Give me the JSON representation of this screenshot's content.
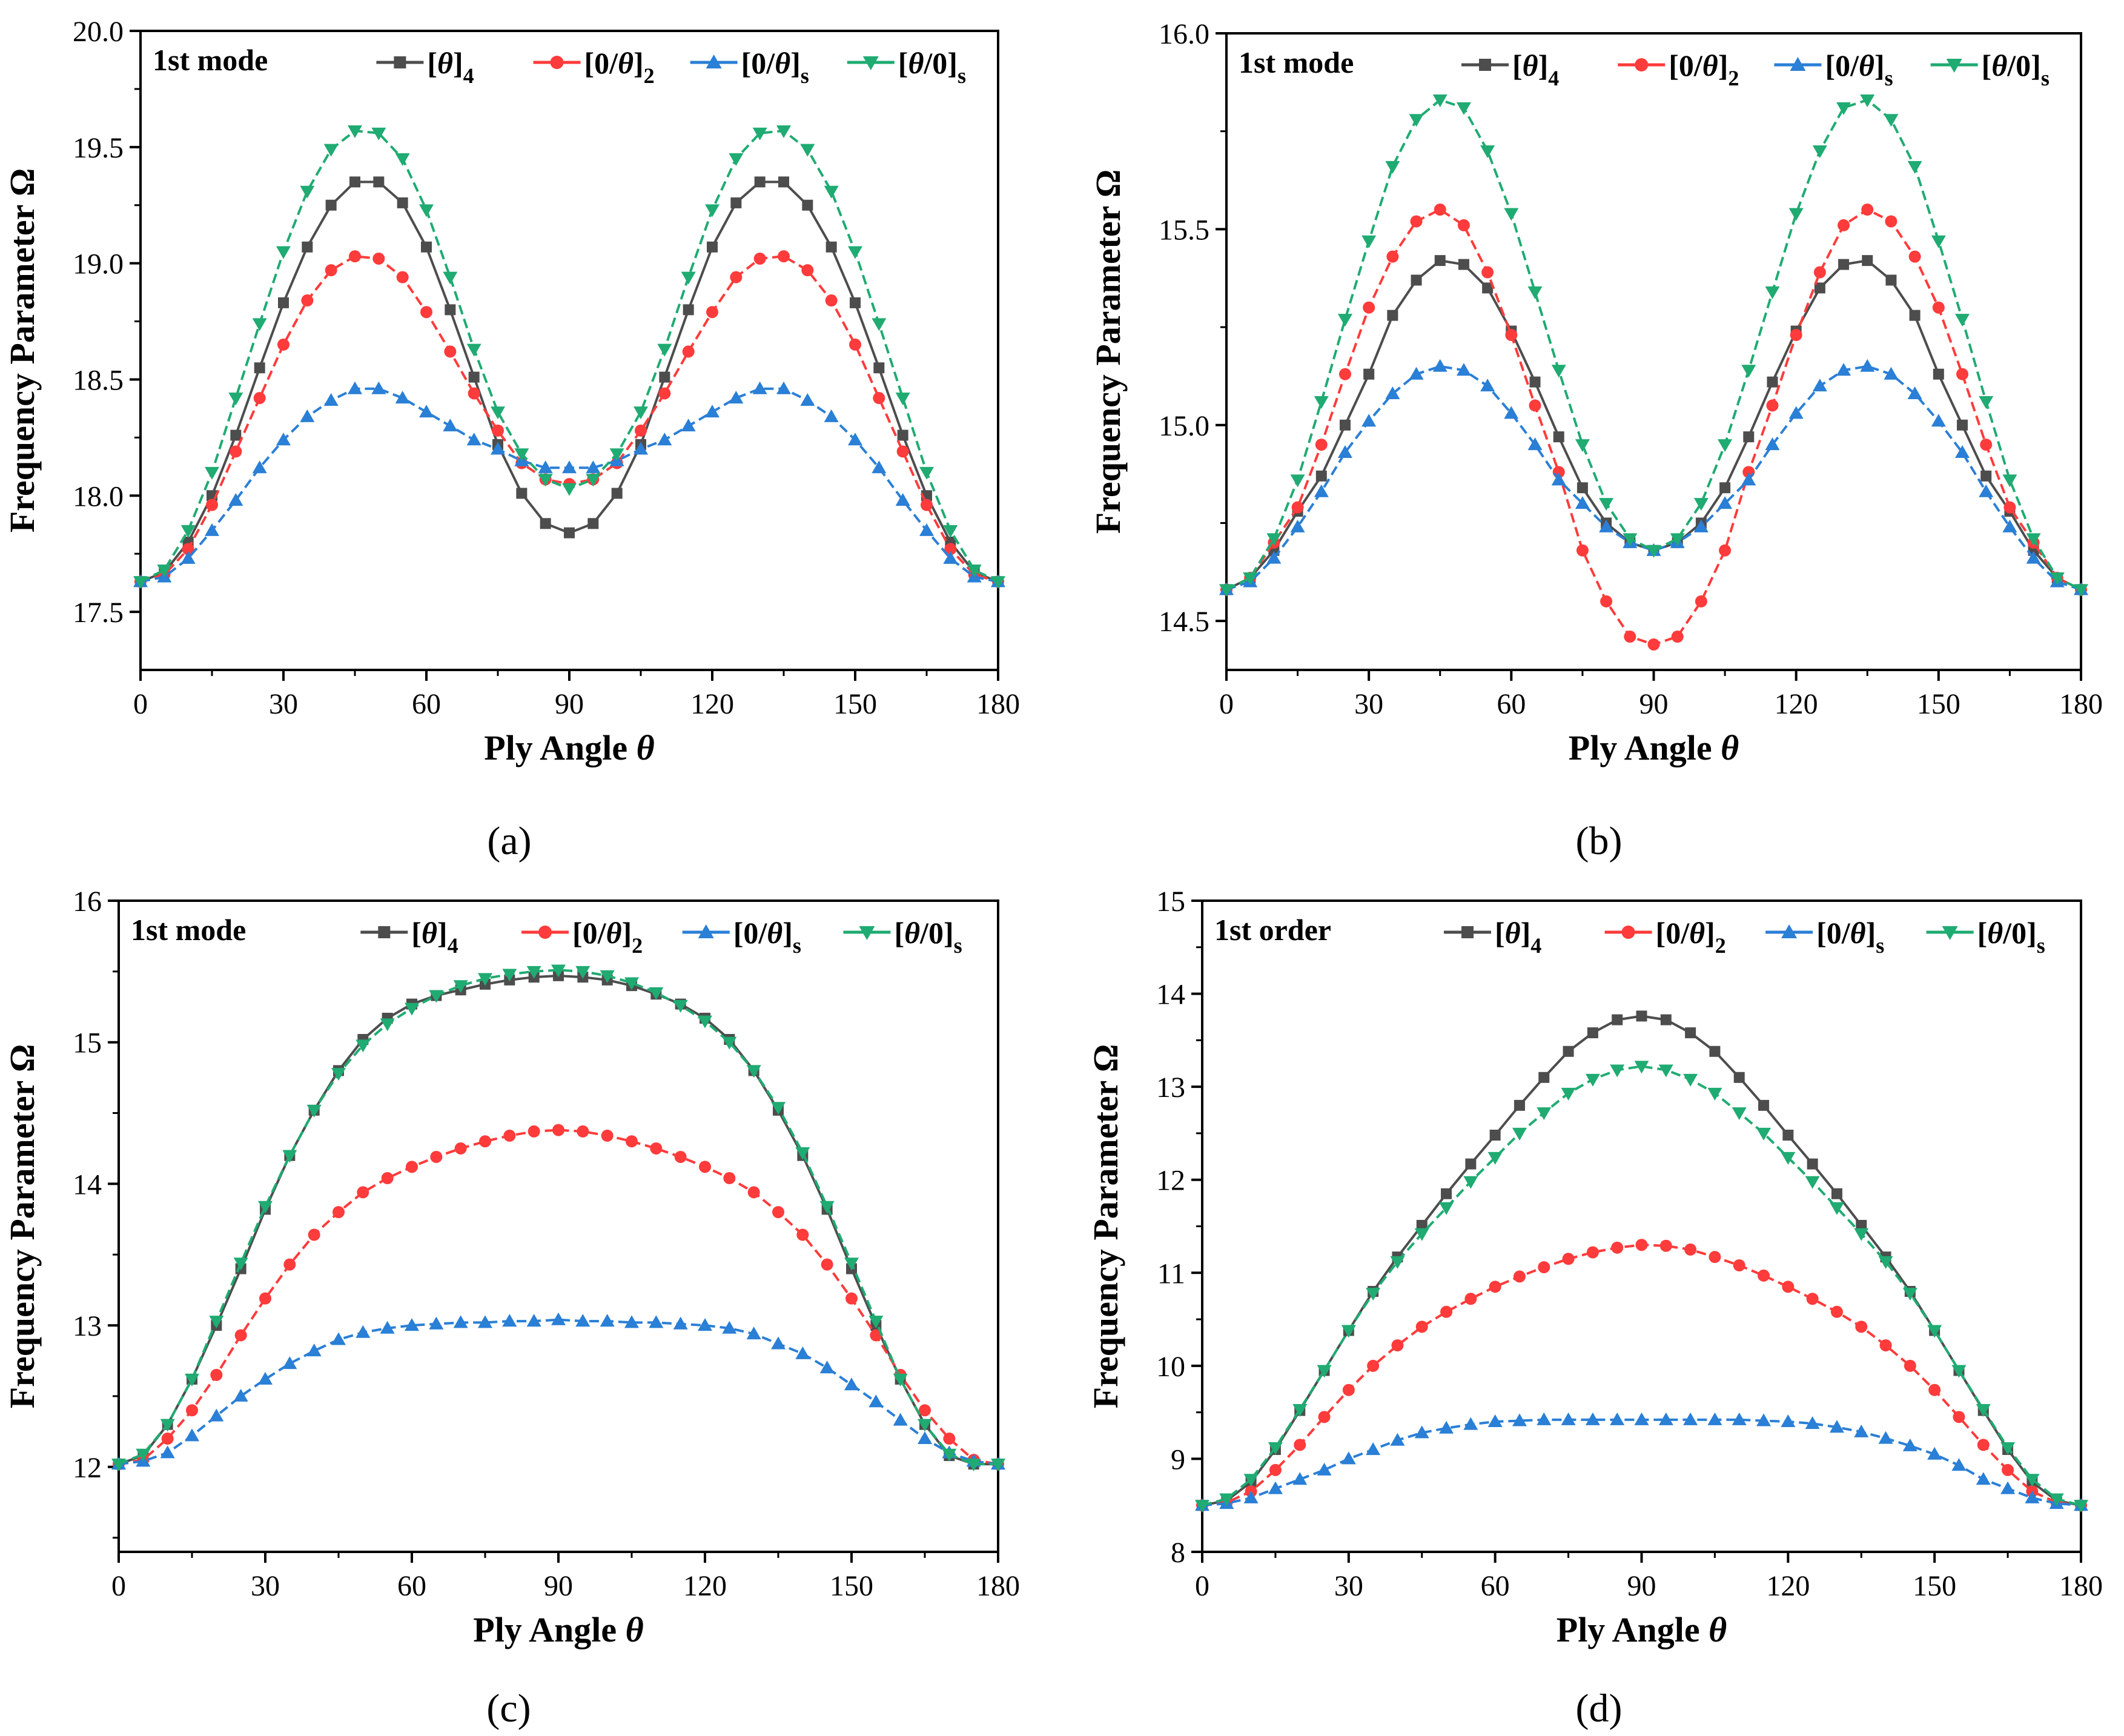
{
  "chart_data": [
    {
      "type": "line",
      "panel": "a",
      "caption": "(a)",
      "annotation": "1st mode",
      "xlabel": "Ply Angle",
      "xlabel_symbol": "θ",
      "ylabel": "Frequency Parameter Ω",
      "xlim": [
        0,
        180
      ],
      "ylim": [
        17.25,
        20.0
      ],
      "xticks": [
        "0",
        "30",
        "60",
        "90",
        "120",
        "150",
        "180"
      ],
      "yticks": [
        "17.5",
        "18.0",
        "18.5",
        "19.0",
        "19.5",
        "20.0"
      ],
      "legend_position": "top",
      "x": [
        0,
        5,
        10,
        15,
        20,
        25,
        30,
        35,
        40,
        45,
        50,
        55,
        60,
        65,
        70,
        75,
        80,
        85,
        90,
        95,
        100,
        105,
        110,
        115,
        120,
        125,
        130,
        135,
        140,
        145,
        150,
        155,
        160,
        165,
        170,
        175,
        180
      ],
      "series": [
        {
          "name": "[θ]4",
          "color": "#4d4d4d",
          "marker": "square",
          "dash": "solid",
          "values": [
            17.63,
            17.67,
            17.8,
            18.0,
            18.26,
            18.55,
            18.83,
            19.07,
            19.25,
            19.35,
            19.35,
            19.26,
            19.07,
            18.8,
            18.51,
            18.22,
            18.01,
            17.88,
            17.84,
            17.88,
            18.01,
            18.22,
            18.51,
            18.8,
            19.07,
            19.26,
            19.35,
            19.35,
            19.25,
            19.07,
            18.83,
            18.55,
            18.26,
            18.0,
            17.8,
            17.67,
            17.63
          ]
        },
        {
          "name": "[0/θ]2",
          "color": "#ff3b3b",
          "marker": "circle",
          "dash": "dash",
          "values": [
            17.63,
            17.66,
            17.77,
            17.96,
            18.19,
            18.42,
            18.65,
            18.84,
            18.97,
            19.03,
            19.02,
            18.94,
            18.79,
            18.62,
            18.44,
            18.28,
            18.14,
            18.07,
            18.05,
            18.07,
            18.14,
            18.28,
            18.44,
            18.62,
            18.79,
            18.94,
            19.02,
            19.03,
            18.97,
            18.84,
            18.65,
            18.42,
            18.19,
            17.96,
            17.77,
            17.66,
            17.63
          ]
        },
        {
          "name": "[0/θ]s",
          "color": "#2a7fd6",
          "marker": "triangle-up",
          "dash": "dash",
          "values": [
            17.63,
            17.65,
            17.73,
            17.85,
            17.98,
            18.12,
            18.24,
            18.34,
            18.41,
            18.46,
            18.46,
            18.42,
            18.36,
            18.3,
            18.24,
            18.2,
            18.15,
            18.12,
            18.12,
            18.12,
            18.15,
            18.2,
            18.24,
            18.3,
            18.36,
            18.42,
            18.46,
            18.46,
            18.41,
            18.34,
            18.24,
            18.12,
            17.98,
            17.85,
            17.73,
            17.65,
            17.63
          ]
        },
        {
          "name": "[θ/0]s",
          "color": "#1fab72",
          "marker": "triangle-down",
          "dash": "dash",
          "values": [
            17.63,
            17.68,
            17.85,
            18.1,
            18.42,
            18.74,
            19.05,
            19.31,
            19.49,
            19.57,
            19.56,
            19.45,
            19.23,
            18.94,
            18.63,
            18.36,
            18.18,
            18.07,
            18.03,
            18.07,
            18.18,
            18.36,
            18.63,
            18.94,
            19.23,
            19.45,
            19.56,
            19.57,
            19.49,
            19.31,
            19.05,
            18.74,
            18.42,
            18.1,
            17.85,
            17.68,
            17.63
          ]
        }
      ]
    },
    {
      "type": "line",
      "panel": "b",
      "caption": "(b)",
      "annotation": "1st mode",
      "xlabel": "Ply Angle",
      "xlabel_symbol": "θ",
      "ylabel": "Frequency Parameter Ω",
      "xlim": [
        0,
        180
      ],
      "ylim": [
        14.375,
        16.0
      ],
      "xticks": [
        "0",
        "30",
        "60",
        "90",
        "120",
        "150",
        "180"
      ],
      "yticks": [
        "14.5",
        "15.0",
        "15.5",
        "16.0"
      ],
      "legend_position": "top",
      "x": [
        0,
        5,
        10,
        15,
        20,
        25,
        30,
        35,
        40,
        45,
        50,
        55,
        60,
        65,
        70,
        75,
        80,
        85,
        90,
        95,
        100,
        105,
        110,
        115,
        120,
        125,
        130,
        135,
        140,
        145,
        150,
        155,
        160,
        165,
        170,
        175,
        180
      ],
      "series": [
        {
          "name": "[θ]4",
          "color": "#4d4d4d",
          "marker": "square",
          "dash": "solid",
          "values": [
            14.58,
            14.61,
            14.68,
            14.78,
            14.87,
            15.0,
            15.13,
            15.28,
            15.37,
            15.42,
            15.41,
            15.35,
            15.24,
            15.11,
            14.97,
            14.84,
            14.75,
            14.7,
            14.68,
            14.7,
            14.75,
            14.84,
            14.97,
            15.11,
            15.24,
            15.35,
            15.41,
            15.42,
            15.37,
            15.28,
            15.13,
            15.0,
            14.87,
            14.78,
            14.68,
            14.61,
            14.58
          ]
        },
        {
          "name": "[0/θ]2",
          "color": "#ff3b3b",
          "marker": "circle",
          "dash": "dash",
          "values": [
            14.58,
            14.61,
            14.7,
            14.79,
            14.95,
            15.13,
            15.3,
            15.43,
            15.52,
            15.55,
            15.51,
            15.39,
            15.23,
            15.05,
            14.88,
            14.68,
            14.55,
            14.46,
            14.44,
            14.46,
            14.55,
            14.68,
            14.88,
            15.05,
            15.23,
            15.39,
            15.51,
            15.55,
            15.52,
            15.43,
            15.3,
            15.13,
            14.95,
            14.79,
            14.7,
            14.61,
            14.58
          ]
        },
        {
          "name": "[0/θ]s",
          "color": "#2a7fd6",
          "marker": "triangle-up",
          "dash": "dash",
          "values": [
            14.58,
            14.6,
            14.66,
            14.74,
            14.83,
            14.93,
            15.01,
            15.08,
            15.13,
            15.15,
            15.14,
            15.1,
            15.03,
            14.95,
            14.86,
            14.8,
            14.74,
            14.7,
            14.68,
            14.7,
            14.74,
            14.8,
            14.86,
            14.95,
            15.03,
            15.1,
            15.14,
            15.15,
            15.13,
            15.08,
            15.01,
            14.93,
            14.83,
            14.74,
            14.66,
            14.6,
            14.58
          ]
        },
        {
          "name": "[θ/0]s",
          "color": "#1fab72",
          "marker": "triangle-down",
          "dash": "dash",
          "values": [
            14.58,
            14.61,
            14.71,
            14.86,
            15.06,
            15.27,
            15.47,
            15.66,
            15.78,
            15.83,
            15.81,
            15.7,
            15.54,
            15.34,
            15.14,
            14.95,
            14.8,
            14.71,
            14.68,
            14.71,
            14.8,
            14.95,
            15.14,
            15.34,
            15.54,
            15.7,
            15.81,
            15.83,
            15.78,
            15.66,
            15.47,
            15.27,
            15.06,
            14.86,
            14.71,
            14.61,
            14.58
          ]
        }
      ]
    },
    {
      "type": "line",
      "panel": "c",
      "caption": "(c)",
      "annotation": "1st mode",
      "xlabel": "Ply Angle",
      "xlabel_symbol": "θ",
      "ylabel": "Frequency Parameter Ω",
      "xlim": [
        0,
        180
      ],
      "ylim": [
        11.4,
        16.0
      ],
      "xticks": [
        "0",
        "30",
        "60",
        "90",
        "120",
        "150",
        "180"
      ],
      "yticks": [
        "12",
        "13",
        "14",
        "15",
        "16"
      ],
      "legend_position": "top",
      "x": [
        0,
        5,
        10,
        15,
        20,
        25,
        30,
        35,
        40,
        45,
        50,
        55,
        60,
        65,
        70,
        75,
        80,
        85,
        90,
        95,
        100,
        105,
        110,
        115,
        120,
        125,
        130,
        135,
        140,
        145,
        150,
        155,
        160,
        165,
        170,
        175,
        180
      ],
      "series": [
        {
          "name": "[θ]4",
          "color": "#4d4d4d",
          "marker": "square",
          "dash": "solid",
          "values": [
            12.02,
            12.08,
            12.3,
            12.62,
            13.0,
            13.4,
            13.82,
            14.2,
            14.52,
            14.8,
            15.02,
            15.17,
            15.27,
            15.33,
            15.37,
            15.41,
            15.44,
            15.46,
            15.47,
            15.46,
            15.44,
            15.4,
            15.34,
            15.27,
            15.17,
            15.02,
            14.8,
            14.52,
            14.2,
            13.82,
            13.4,
            13.0,
            12.62,
            12.3,
            12.08,
            12.02,
            12.02
          ]
        },
        {
          "name": "[0/θ]2",
          "color": "#ff3b3b",
          "marker": "circle",
          "dash": "dash",
          "values": [
            12.02,
            12.05,
            12.2,
            12.4,
            12.65,
            12.93,
            13.19,
            13.43,
            13.64,
            13.8,
            13.94,
            14.04,
            14.12,
            14.19,
            14.25,
            14.3,
            14.34,
            14.37,
            14.38,
            14.37,
            14.34,
            14.3,
            14.25,
            14.19,
            14.12,
            14.04,
            13.94,
            13.8,
            13.64,
            13.43,
            13.19,
            12.93,
            12.65,
            12.4,
            12.2,
            12.05,
            12.02
          ]
        },
        {
          "name": "[0/θ]s",
          "color": "#2a7fd6",
          "marker": "triangle-up",
          "dash": "dash",
          "values": [
            12.02,
            12.04,
            12.1,
            12.22,
            12.36,
            12.5,
            12.62,
            12.73,
            12.82,
            12.9,
            12.95,
            12.98,
            13.0,
            13.01,
            13.02,
            13.02,
            13.03,
            13.03,
            13.04,
            13.03,
            13.03,
            13.02,
            13.02,
            13.01,
            13.0,
            12.98,
            12.94,
            12.87,
            12.8,
            12.7,
            12.58,
            12.46,
            12.33,
            12.2,
            12.1,
            12.04,
            12.02
          ]
        },
        {
          "name": "[θ/0]s",
          "color": "#1fab72",
          "marker": "triangle-down",
          "dash": "dash",
          "values": [
            12.02,
            12.09,
            12.3,
            12.62,
            13.03,
            13.44,
            13.84,
            14.2,
            14.52,
            14.78,
            14.98,
            15.13,
            15.24,
            15.33,
            15.4,
            15.45,
            15.48,
            15.5,
            15.51,
            15.5,
            15.47,
            15.42,
            15.35,
            15.26,
            15.15,
            15.0,
            14.8,
            14.54,
            14.22,
            13.84,
            13.44,
            13.03,
            12.62,
            12.3,
            12.09,
            12.02,
            12.02
          ]
        }
      ]
    },
    {
      "type": "line",
      "panel": "d",
      "caption": "(d)",
      "annotation": "1st order",
      "xlabel": "Ply Angle",
      "xlabel_symbol": "θ",
      "ylabel": "Frequency Parameter Ω",
      "xlim": [
        0,
        180
      ],
      "ylim": [
        8,
        15
      ],
      "xticks": [
        "0",
        "30",
        "60",
        "90",
        "120",
        "150",
        "180"
      ],
      "yticks": [
        "8",
        "9",
        "10",
        "11",
        "12",
        "13",
        "14",
        "15"
      ],
      "legend_position": "top",
      "x": [
        0,
        5,
        10,
        15,
        20,
        25,
        30,
        35,
        40,
        45,
        50,
        55,
        60,
        65,
        70,
        75,
        80,
        85,
        90,
        95,
        100,
        105,
        110,
        115,
        120,
        125,
        130,
        135,
        140,
        145,
        150,
        155,
        160,
        165,
        170,
        175,
        180
      ],
      "series": [
        {
          "name": "[θ]4",
          "color": "#4d4d4d",
          "marker": "square",
          "dash": "solid",
          "values": [
            8.5,
            8.55,
            8.75,
            9.1,
            9.52,
            9.95,
            10.38,
            10.8,
            11.17,
            11.51,
            11.85,
            12.17,
            12.48,
            12.8,
            13.1,
            13.38,
            13.58,
            13.72,
            13.76,
            13.72,
            13.58,
            13.38,
            13.1,
            12.8,
            12.48,
            12.17,
            11.85,
            11.51,
            11.17,
            10.8,
            10.38,
            9.95,
            9.52,
            9.1,
            8.75,
            8.55,
            8.5
          ]
        },
        {
          "name": "[0/θ]2",
          "color": "#ff3b3b",
          "marker": "circle",
          "dash": "dash",
          "values": [
            8.5,
            8.53,
            8.65,
            8.88,
            9.15,
            9.45,
            9.74,
            10.0,
            10.22,
            10.42,
            10.58,
            10.72,
            10.85,
            10.96,
            11.06,
            11.15,
            11.22,
            11.27,
            11.3,
            11.29,
            11.25,
            11.17,
            11.08,
            10.97,
            10.85,
            10.72,
            10.58,
            10.42,
            10.22,
            10.0,
            9.74,
            9.45,
            9.15,
            8.88,
            8.65,
            8.53,
            8.5
          ]
        },
        {
          "name": "[0/θ]s",
          "color": "#2a7fd6",
          "marker": "triangle-up",
          "dash": "dash",
          "values": [
            8.5,
            8.52,
            8.58,
            8.68,
            8.78,
            8.88,
            9.0,
            9.1,
            9.2,
            9.28,
            9.33,
            9.37,
            9.4,
            9.41,
            9.42,
            9.42,
            9.42,
            9.42,
            9.42,
            9.42,
            9.42,
            9.42,
            9.42,
            9.41,
            9.4,
            9.38,
            9.34,
            9.29,
            9.22,
            9.14,
            9.05,
            8.93,
            8.78,
            8.68,
            8.58,
            8.52,
            8.5
          ]
        },
        {
          "name": "[θ/0]s",
          "color": "#1fab72",
          "marker": "triangle-down",
          "dash": "dash",
          "values": [
            8.5,
            8.57,
            8.78,
            9.12,
            9.53,
            9.95,
            10.38,
            10.78,
            11.12,
            11.42,
            11.7,
            11.98,
            12.24,
            12.5,
            12.72,
            12.93,
            13.08,
            13.18,
            13.22,
            13.18,
            13.08,
            12.93,
            12.72,
            12.5,
            12.24,
            11.98,
            11.7,
            11.42,
            11.12,
            10.78,
            10.38,
            9.95,
            9.53,
            9.12,
            8.78,
            8.57,
            8.5
          ]
        }
      ]
    }
  ]
}
